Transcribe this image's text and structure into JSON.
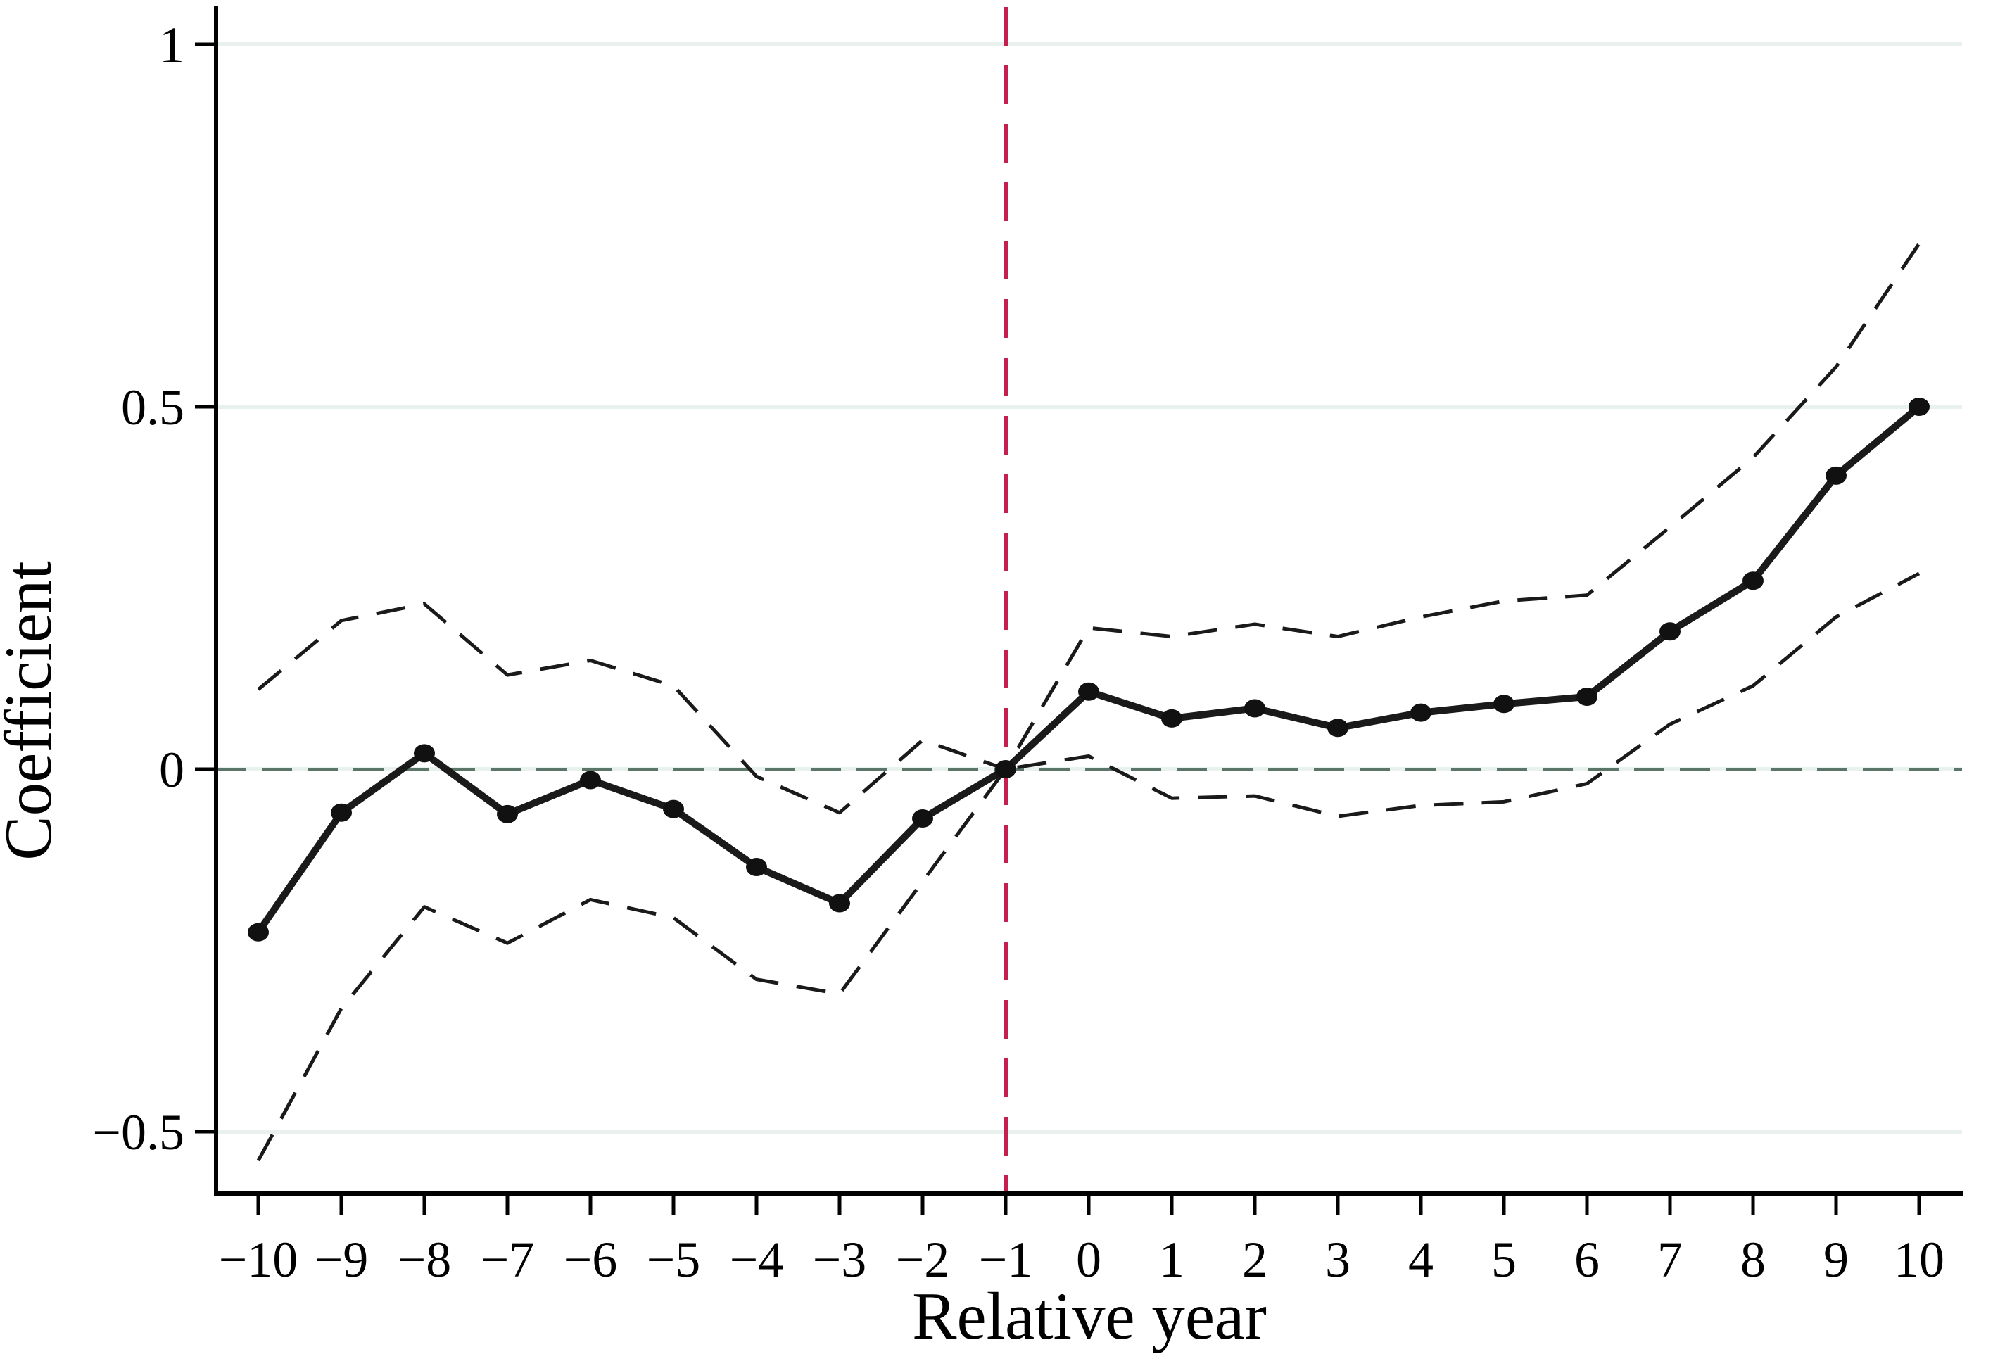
{
  "chart_data": {
    "type": "line",
    "title": "",
    "xlabel": "Relative year",
    "ylabel": "Coefficient",
    "x": [
      -10,
      -9,
      -8,
      -7,
      -6,
      -5,
      -4,
      -3,
      -2,
      -1,
      0,
      1,
      2,
      3,
      4,
      5,
      6,
      7,
      8,
      9,
      10
    ],
    "series": [
      {
        "name": "coefficient",
        "style": "solid-with-markers",
        "color": "#1a1a1a",
        "values": [
          -0.225,
          -0.06,
          0.022,
          -0.062,
          -0.015,
          -0.055,
          -0.135,
          -0.185,
          -0.068,
          0,
          0.107,
          0.07,
          0.084,
          0.057,
          0.078,
          0.09,
          0.1,
          0.19,
          0.26,
          0.405,
          0.5
        ]
      },
      {
        "name": "upper-95-ci",
        "style": "dashed",
        "color": "#1a1a1a",
        "values": [
          0.11,
          0.205,
          0.228,
          0.13,
          0.15,
          0.115,
          -0.01,
          -0.06,
          0.04,
          0,
          0.195,
          0.183,
          0.2,
          0.183,
          0.21,
          0.232,
          0.24,
          0.334,
          0.43,
          0.555,
          0.725
        ]
      },
      {
        "name": "lower-95-ci",
        "style": "dashed",
        "color": "#1a1a1a",
        "values": [
          -0.54,
          -0.33,
          -0.19,
          -0.24,
          -0.18,
          -0.205,
          -0.29,
          -0.31,
          -0.155,
          0,
          0.018,
          -0.04,
          -0.037,
          -0.065,
          -0.05,
          -0.045,
          -0.02,
          0.062,
          0.115,
          0.21,
          0.27
        ]
      }
    ],
    "x_ticks": [
      -10,
      -9,
      -8,
      -7,
      -6,
      -5,
      -4,
      -3,
      -2,
      -1,
      0,
      1,
      2,
      3,
      4,
      5,
      6,
      7,
      8,
      9,
      10
    ],
    "x_tick_labels": [
      "−10",
      "−9",
      "−8",
      "−7",
      "−6",
      "−5",
      "−4",
      "−3",
      "−2",
      "−1",
      "0",
      "1",
      "2",
      "3",
      "4",
      "5",
      "6",
      "7",
      "8",
      "9",
      "10"
    ],
    "y_ticks": [
      1,
      0.5,
      0,
      -0.5
    ],
    "y_tick_labels": [
      "1",
      "0.5",
      "0",
      "−0.5"
    ],
    "xlim": [
      -10.5,
      10.5
    ],
    "ylim": [
      -0.59,
      1.05
    ],
    "grid": "horizontal-only",
    "legend": "none",
    "reference_lines": {
      "vertical_x": -1,
      "horizontal_y": 0
    }
  },
  "colors": {
    "line": "#1a1a1a",
    "marker": "#111111",
    "gridline": "#e8f1ee",
    "zero_line_dash": "#5c7569",
    "vertical_reference": "#c41f4e",
    "axis": "#000000",
    "background": "#ffffff"
  }
}
